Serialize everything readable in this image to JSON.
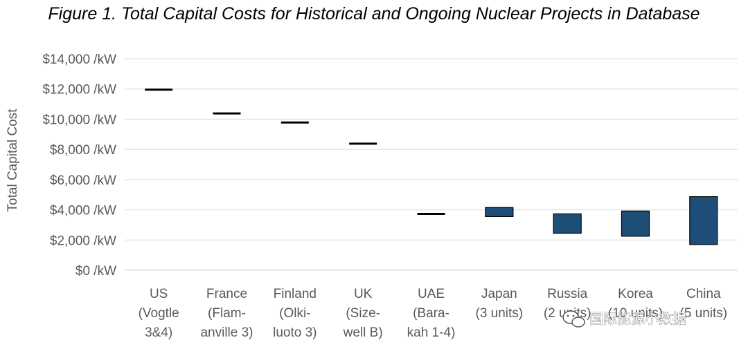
{
  "chart_data": {
    "type": "bar",
    "subtype": "floating-range",
    "title": "Figure 1. Total Capital Costs for Historical and Ongoing Nuclear Projects in Database",
    "xlabel": "",
    "ylabel": "Total Capital Cost",
    "ylim": [
      0,
      14000
    ],
    "ytick_step": 2000,
    "ytick_labels": [
      "$0 /kW",
      "$2,000 /kW",
      "$4,000 /kW",
      "$6,000 /kW",
      "$8,000 /kW",
      "$10,000 /kW",
      "$12,000 /kW",
      "$14,000 /kW"
    ],
    "grid": true,
    "categories": [
      [
        "US",
        "(Vogtle",
        "3&4)"
      ],
      [
        "France",
        "(Flam-",
        "anville 3)"
      ],
      [
        "Finland",
        "(Olki-",
        "luoto 3)"
      ],
      [
        "UK",
        "(Size-",
        "well B)"
      ],
      [
        "UAE",
        "(Bara-",
        "kah 1-4)"
      ],
      [
        "Japan",
        "(3 units)"
      ],
      [
        "Russia",
        "(2 units)"
      ],
      [
        "Korea",
        "(10 units)"
      ],
      [
        "China",
        "(5 units)"
      ]
    ],
    "series": [
      {
        "name": "Total Capital Cost ($/kW)",
        "color": "#1f4e79",
        "low": [
          11950,
          10380,
          9780,
          8380,
          3730,
          3550,
          2450,
          2250,
          1700
        ],
        "high": [
          11950,
          10380,
          9780,
          8380,
          3730,
          4150,
          3730,
          3920,
          4870
        ]
      }
    ]
  },
  "watermark": {
    "text": "国际能源小数据",
    "icon": "wechat-icon"
  }
}
